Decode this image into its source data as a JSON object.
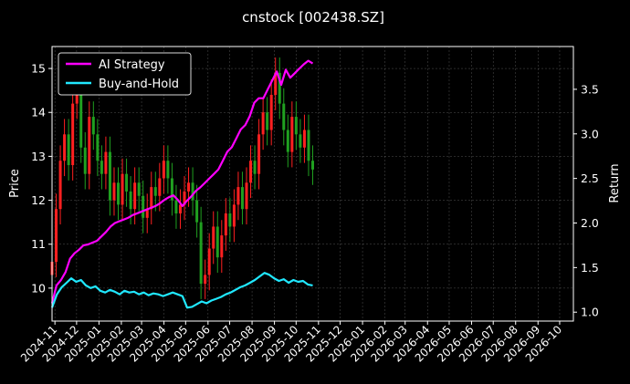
{
  "chart_data": {
    "type": "line",
    "title": "cnstock [002438.SZ]",
    "ylabel_left": "Price",
    "ylabel_right": "Return",
    "xlim": [
      "2024-10-28",
      "2026-10-20"
    ],
    "ylim_left": [
      9.25,
      15.5
    ],
    "ylim_right": [
      0.9,
      3.98
    ],
    "grid": true,
    "legend_position": "top-left",
    "x_ticks": [
      "2024-11",
      "2024-12",
      "2025-01",
      "2025-02",
      "2025-03",
      "2025-04",
      "2025-05",
      "2025-06",
      "2025-07",
      "2025-08",
      "2025-09",
      "2025-10",
      "2025-11",
      "2025-12",
      "2026-01",
      "2026-02",
      "2026-03",
      "2026-04",
      "2026-05",
      "2026-06",
      "2026-07",
      "2026-08",
      "2026-09",
      "2026-10"
    ],
    "y_ticks_left": [
      10,
      11,
      12,
      13,
      14,
      15
    ],
    "y_ticks_right": [
      "1.0",
      "1.5",
      "2.0",
      "2.5",
      "3.0",
      "3.5"
    ],
    "candles": {
      "name": "Price",
      "up_color": "#ff2020",
      "down_color": "#20a020",
      "date_range": [
        "2024-10-28",
        "2025-10-24"
      ],
      "closes": [
        10.6,
        11.8,
        12.9,
        13.5,
        12.8,
        14.2,
        14.6,
        13.2,
        12.6,
        13.9,
        13.5,
        12.9,
        12.6,
        13.1,
        12.0,
        12.4,
        11.9,
        12.6,
        12.2,
        11.8,
        12.4,
        12.1,
        11.6,
        11.8,
        12.3,
        12.1,
        12.5,
        12.9,
        12.5,
        12.0,
        11.7,
        11.9,
        12.2,
        12.4,
        12.0,
        11.5,
        10.1,
        10.3,
        10.9,
        11.4,
        10.7,
        11.2,
        11.7,
        11.4,
        11.9,
        12.3,
        11.8,
        12.4,
        12.9,
        12.6,
        13.5,
        14.0,
        13.6,
        14.4,
        14.9,
        14.2,
        13.6,
        13.1,
        13.9,
        13.5,
        13.2,
        13.6,
        12.9,
        12.7
      ]
    },
    "series": [
      {
        "name": "AI Strategy",
        "color": "#ff00ff",
        "date_range": [
          "2024-10-28",
          "2025-10-24"
        ],
        "values": [
          1.1,
          1.3,
          1.36,
          1.45,
          1.6,
          1.66,
          1.7,
          1.75,
          1.76,
          1.78,
          1.8,
          1.85,
          1.9,
          1.96,
          2.0,
          2.02,
          2.04,
          2.06,
          2.09,
          2.11,
          2.13,
          2.15,
          2.17,
          2.19,
          2.22,
          2.26,
          2.29,
          2.31,
          2.26,
          2.19,
          2.25,
          2.3,
          2.36,
          2.4,
          2.45,
          2.5,
          2.55,
          2.6,
          2.7,
          2.8,
          2.85,
          2.95,
          3.05,
          3.1,
          3.2,
          3.35,
          3.4,
          3.4,
          3.5,
          3.6,
          3.7,
          3.55,
          3.72,
          3.63,
          3.68,
          3.73,
          3.78,
          3.82,
          3.79
        ]
      },
      {
        "name": "Buy-and-Hold",
        "color": "#20e8ff",
        "date_range": [
          "2024-10-28",
          "2025-10-24"
        ],
        "values": [
          1.05,
          1.2,
          1.28,
          1.33,
          1.38,
          1.34,
          1.36,
          1.3,
          1.27,
          1.29,
          1.24,
          1.22,
          1.25,
          1.23,
          1.2,
          1.24,
          1.22,
          1.23,
          1.2,
          1.22,
          1.19,
          1.21,
          1.2,
          1.18,
          1.2,
          1.22,
          1.2,
          1.18,
          1.05,
          1.06,
          1.09,
          1.12,
          1.1,
          1.13,
          1.15,
          1.17,
          1.2,
          1.22,
          1.25,
          1.28,
          1.3,
          1.33,
          1.36,
          1.4,
          1.44,
          1.42,
          1.38,
          1.35,
          1.37,
          1.33,
          1.36,
          1.34,
          1.35,
          1.31,
          1.3
        ]
      }
    ]
  }
}
